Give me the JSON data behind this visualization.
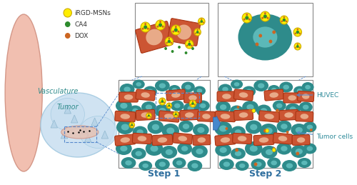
{
  "title": "",
  "bg_color": "#ffffff",
  "teal_cell_color": "#2e8b8b",
  "teal_cell_light": "#5bb8b8",
  "huvec_color": "#cc5533",
  "huvec_light": "#e8aa88",
  "huvec_dark": "#c04422",
  "tumor_bg_color": "#c8dff0",
  "vasculature_color": "#f0b8a8",
  "irgd_color": "#ffee00",
  "irgd_border": "#ccaa00",
  "ca4_color": "#2d8b2d",
  "dox_color": "#cc6622",
  "step1_label": "Step 1",
  "step2_label": "Step 2",
  "vasculature_label": "Vasculature",
  "tumor_label": "Tumor",
  "huvec_label": "HUVEC",
  "tumor_cells_label": "Tumor cells",
  "legend_labels": [
    "iRGD-MSNs",
    "CA4",
    "DOX"
  ],
  "legend_colors": [
    "#ffee00",
    "#2d8b2d",
    "#cc6622"
  ],
  "arrow_color": "#4488cc",
  "dashed_color": "#5588cc"
}
